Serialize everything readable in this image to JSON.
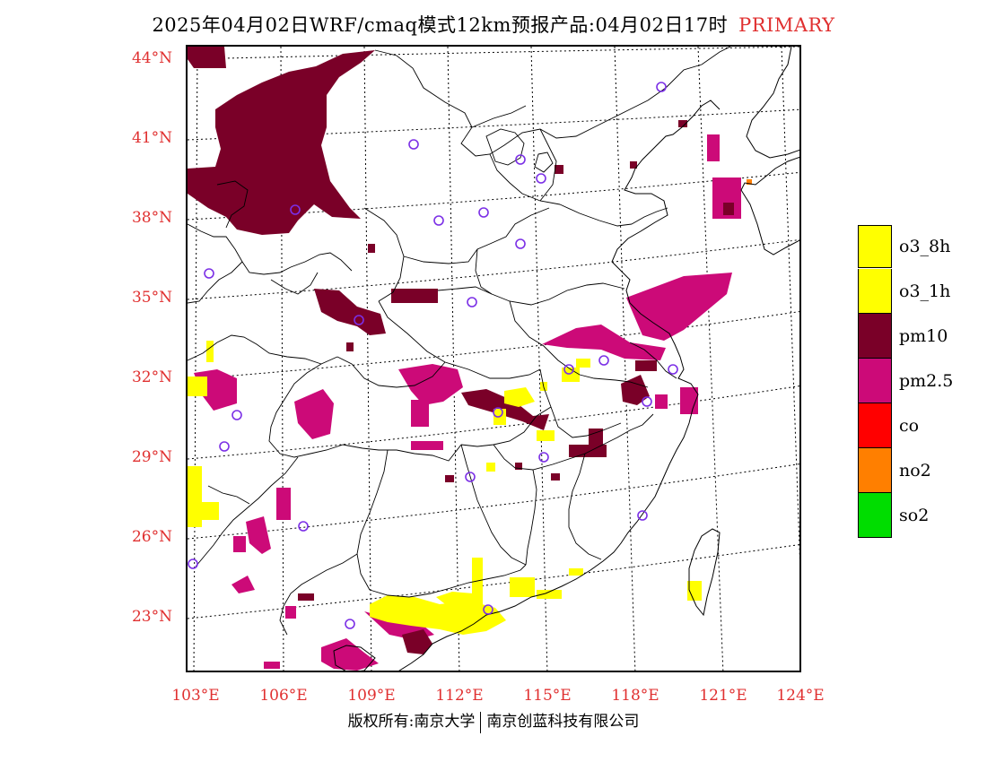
{
  "title": {
    "main": "2025年04月02日WRF/cmaq模式12km预报产品:04月02日17时",
    "tag": "PRIMARY"
  },
  "axes": {
    "lat_labels": [
      "44°N",
      "41°N",
      "38°N",
      "35°N",
      "32°N",
      "29°N",
      "26°N",
      "23°N"
    ],
    "lon_labels": [
      "103°E",
      "106°E",
      "109°E",
      "112°E",
      "115°E",
      "118°E",
      "121°E",
      "124°E"
    ]
  },
  "legend": [
    {
      "label": "o3_8h",
      "color": "#ffff00"
    },
    {
      "label": "o3_1h",
      "color": "#ffff00"
    },
    {
      "label": "pm10",
      "color": "#7a0028"
    },
    {
      "label": "pm2.5",
      "color": "#cc0a78"
    },
    {
      "label": "co",
      "color": "#ff0000"
    },
    {
      "label": "no2",
      "color": "#ff7f00"
    },
    {
      "label": "so2",
      "color": "#00dd00"
    }
  ],
  "footer": {
    "left": "版权所有:南京大学",
    "right": "南京创蓝科技有限公司"
  }
}
